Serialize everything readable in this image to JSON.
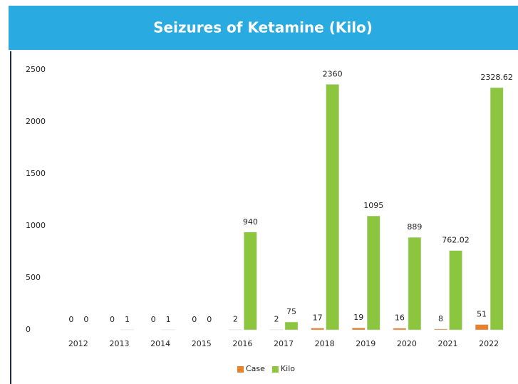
{
  "chart_data": {
    "type": "bar",
    "title": "Seizures of Ketamine (Kilo)",
    "categories": [
      "2012",
      "2013",
      "2014",
      "2015",
      "2016",
      "2017",
      "2018",
      "2019",
      "2020",
      "2021",
      "2022"
    ],
    "series": [
      {
        "name": "Case",
        "color": "#e8822a",
        "values": [
          0,
          0,
          0,
          0,
          2,
          2,
          17,
          19,
          16,
          8,
          51
        ]
      },
      {
        "name": "Kilo",
        "color": "#8cc63f",
        "values": [
          0,
          1,
          1,
          0,
          940,
          75,
          2360,
          1095,
          889,
          762.02,
          2328.62
        ]
      }
    ],
    "ylim": [
      0,
      2500
    ],
    "yticks": [
      0,
      500,
      1000,
      1500,
      2000,
      2500
    ],
    "grid": false,
    "legend": "bottom"
  }
}
